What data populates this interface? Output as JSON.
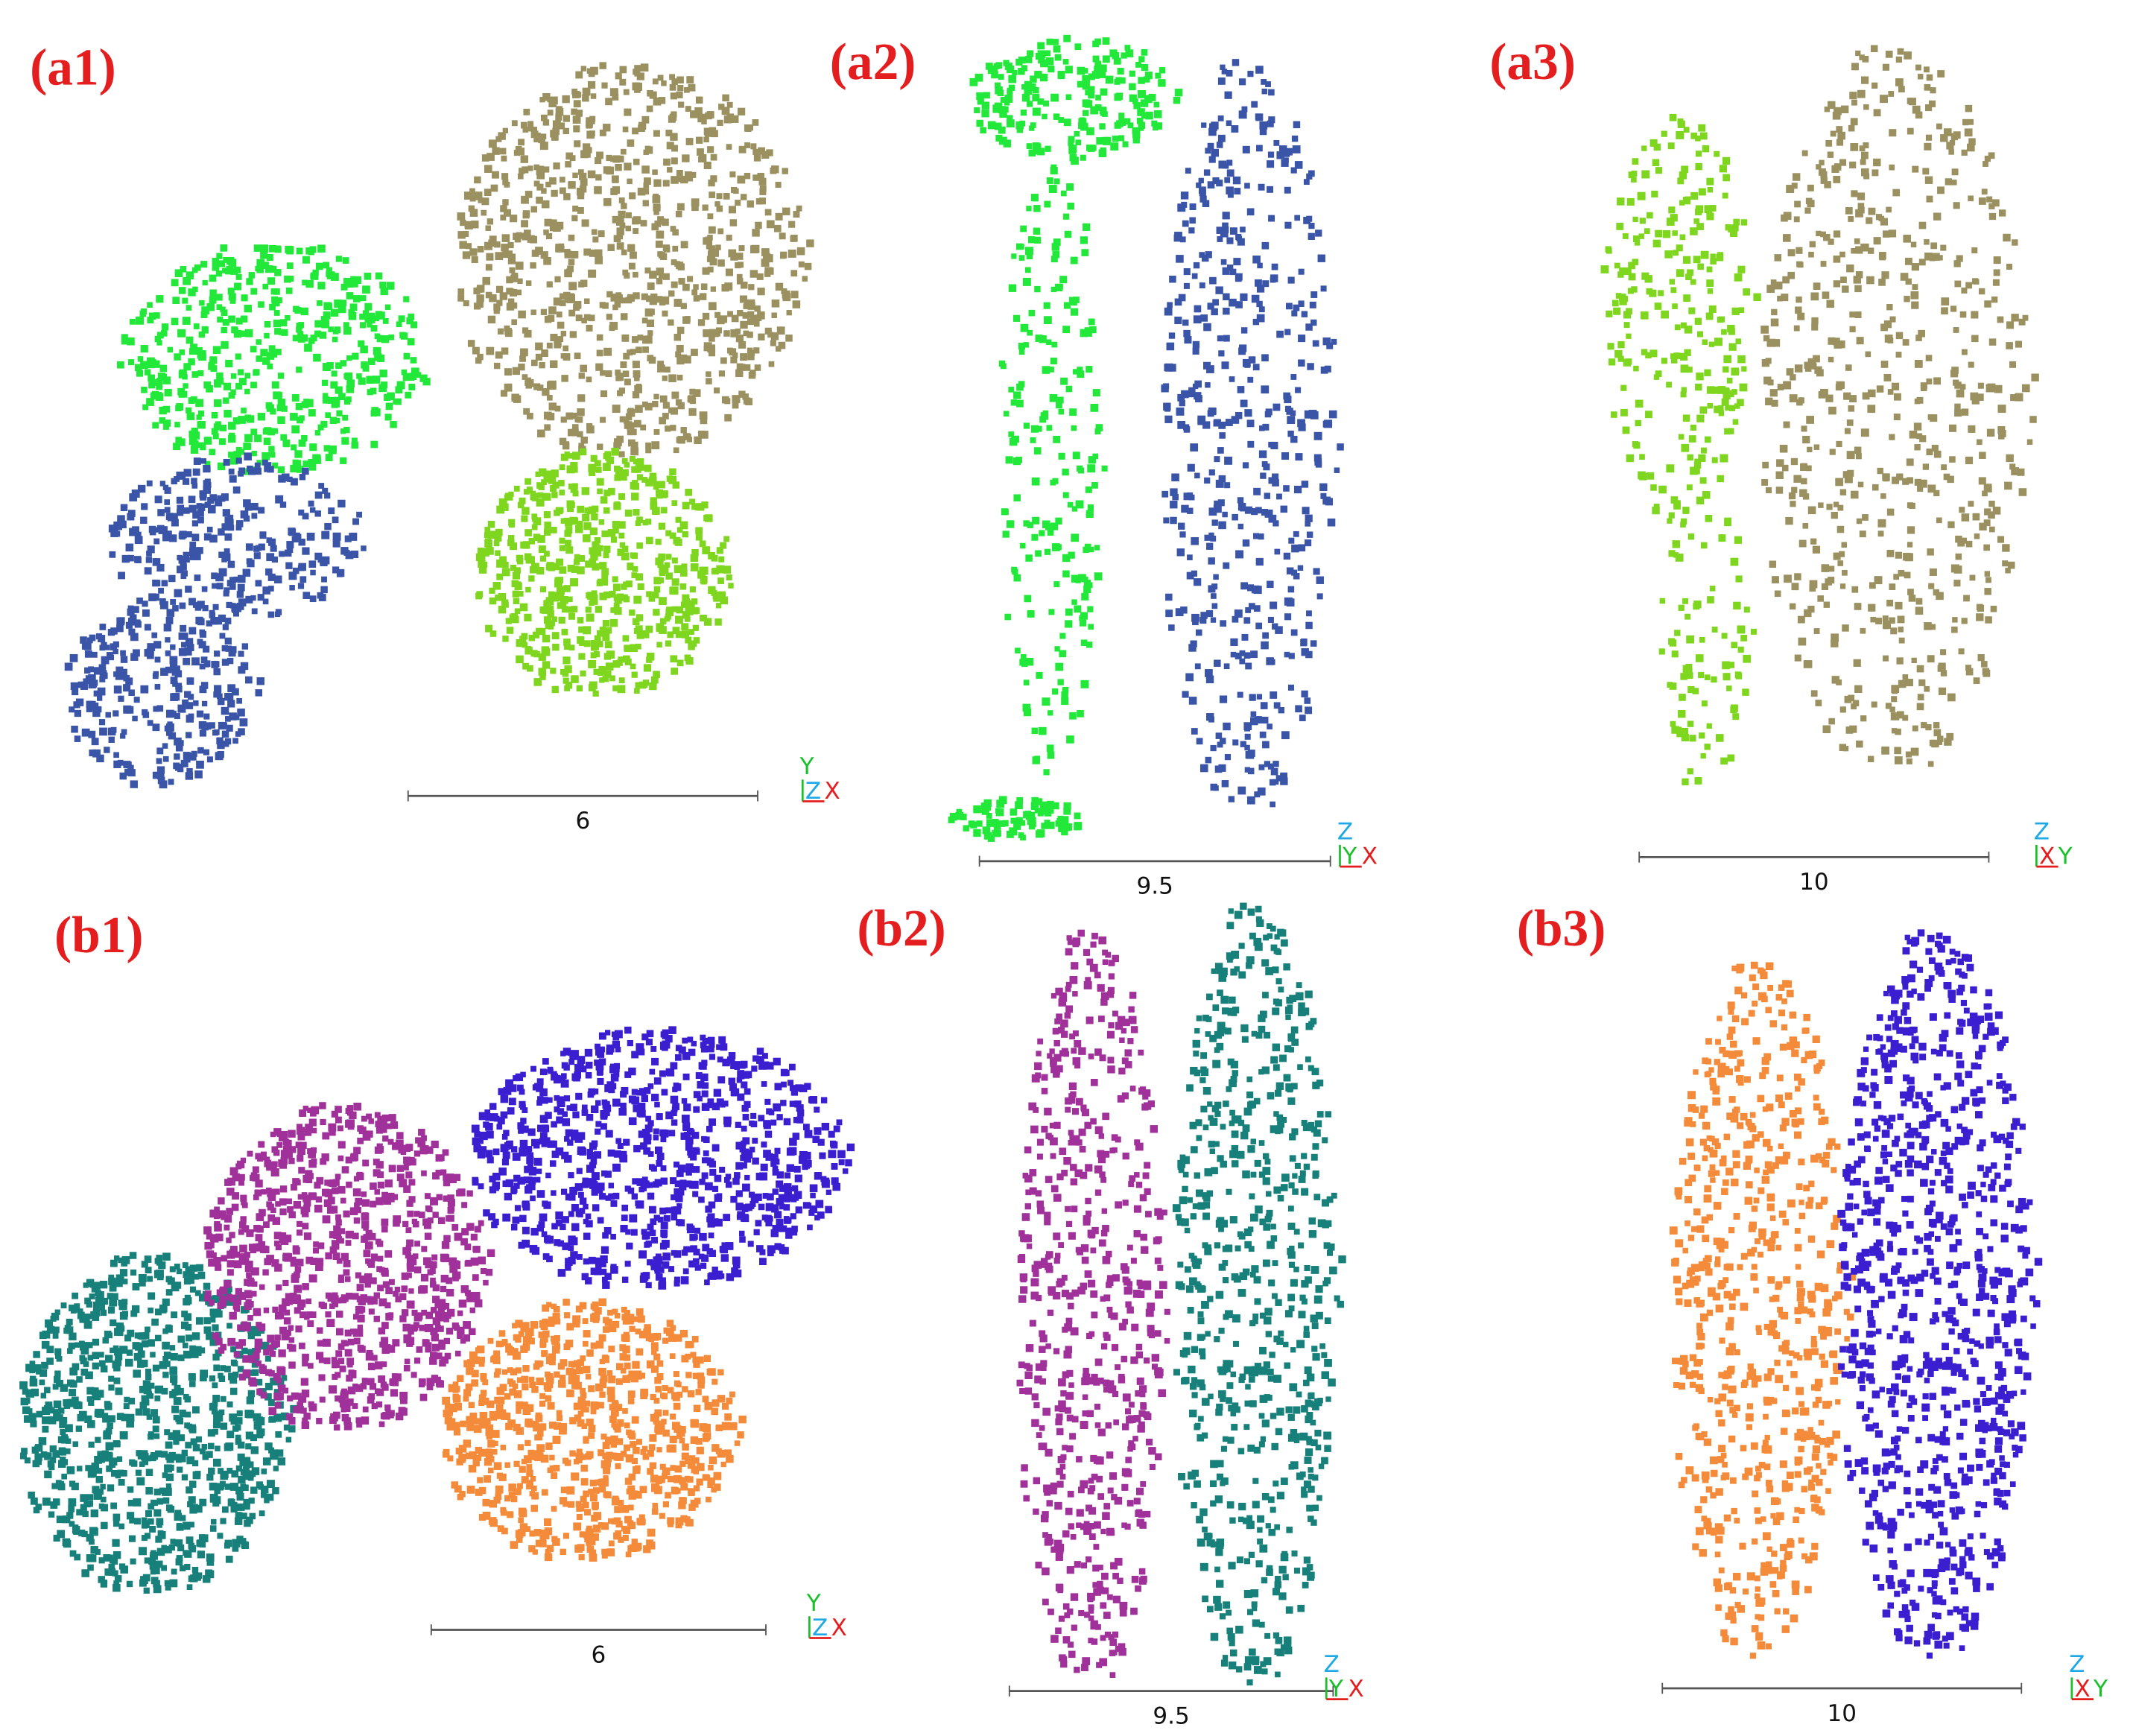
{
  "panels": [
    {
      "label": "(a1)",
      "scale": "6",
      "axes": {
        "up": "Y",
        "mid": "Z",
        "right": "X"
      }
    },
    {
      "label": "(a2)",
      "scale": "9.5",
      "axes": {
        "up": "Z",
        "mid": "Y",
        "right": "X"
      }
    },
    {
      "label": "(a3)",
      "scale": "10",
      "axes": {
        "up": "Z",
        "mid": "X",
        "right": "Y"
      }
    },
    {
      "label": "(b1)",
      "scale": "6",
      "axes": {
        "up": "Y",
        "mid": "Z",
        "right": "X"
      }
    },
    {
      "label": "(b2)",
      "scale": "9.5",
      "axes": {
        "up": "Z",
        "mid": "Y",
        "right": "X"
      }
    },
    {
      "label": "(b3)",
      "scale": "10",
      "axes": {
        "up": "Z",
        "mid": "X",
        "right": "Y"
      }
    }
  ]
}
